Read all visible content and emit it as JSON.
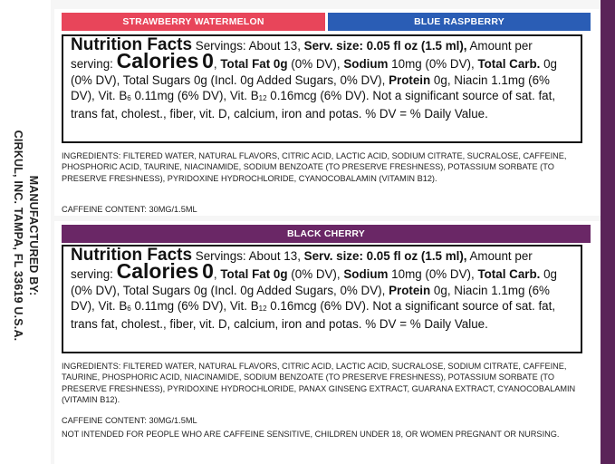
{
  "manufacturer": {
    "line1": "MANUFACTURED BY:",
    "line2": "CIRKUL, INC. TAMPA, FL 33619 U.S.A."
  },
  "flavors": {
    "strawberry": "STRAWBERRY WATERMELON",
    "blue": "BLUE RASPBERRY",
    "cherry": "BLACK CHERRY"
  },
  "nutrition": {
    "title": "Nutrition Facts",
    "servings": "Servings: About 13, ",
    "serv_size_label": "Serv. size: 0.05 fl oz (1.5 ml),",
    "amount_label": "Amount per serving: ",
    "calories_label": "Calories",
    "calories_value": "0",
    "total_fat_label": "Total Fat",
    "total_fat_value": "0g",
    "total_fat_dv": "(0% DV), ",
    "sodium_label": "Sodium",
    "sodium_value": "10mg (0% DV),",
    "total_carb_label": "Total Carb.",
    "total_carb_value": " 0g (0% DV), Total Sugars 0g (Incl. 0g Added Sugars, 0% DV), ",
    "protein_label": "Protein",
    "protein_value": " 0g,",
    "vitamins_a": "Niacin 1.1mg (6% DV), Vit. B",
    "b6_sub": "6",
    "vitamins_b": " 0.11mg (6% DV), Vit. B",
    "b12_sub": "12",
    "vitamins_c": " 0.16mcg (6% DV). Not a significant source of sat. fat, trans fat, cholest., fiber, vit. D, calcium, iron and potas. % DV = % Daily Value."
  },
  "ingredients_1": "INGREDIENTS: FILTERED WATER, NATURAL FLAVORS, CITRIC ACID, LACTIC ACID, SODIUM CITRATE, SUCRALOSE, CAFFEINE, PHOSPHORIC ACID, TAURINE, NIACINAMIDE, SODIUM BENZOATE (TO PRESERVE FRESHNESS), POTASSIUM SORBATE (TO PRESERVE FRESHNESS), PYRIDOXINE HYDROCHLORIDE, CYANOCOBALAMIN (VITAMIN B12).",
  "caffeine_1": "CAFFEINE CONTENT: 30MG/1.5ML",
  "ingredients_2": "INGREDIENTS: FILTERED WATER, NATURAL FLAVORS, CITRIC ACID, LACTIC ACID, SUCRALOSE, SODIUM CITRATE, CAFFEINE, TAURINE, PHOSPHORIC ACID, NIACINAMIDE, SODIUM BENZOATE (TO PRESERVE FRESHNESS), POTASSIUM SORBATE (TO PRESERVE FRESHNESS), PYRIDOXINE HYDROCHLORIDE, PANAX GINSENG EXTRACT, GUARANA EXTRACT, CYANOCOBALAMIN (VITAMIN B12).",
  "caffeine_2": "CAFFEINE CONTENT: 30MG/1.5ML",
  "warning": "NOT INTENDED FOR PEOPLE WHO ARE CAFFEINE SENSITIVE, CHILDREN UNDER 18, OR WOMEN PREGNANT OR NURSING.",
  "colors": {
    "strawberry": "#e8455a",
    "blue": "#2a5db5",
    "cherry": "#6a2766"
  }
}
